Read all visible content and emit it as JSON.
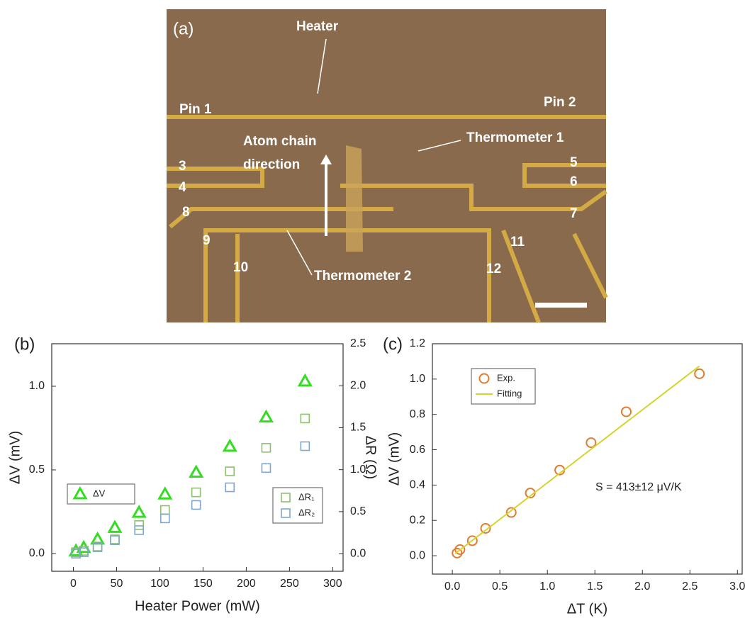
{
  "image_panel": {
    "panel_label": "(a)",
    "labels": {
      "heater": "Heater",
      "pin1": "Pin 1",
      "pin2": "Pin 2",
      "atom1": "Atom chain",
      "atom2": "direction",
      "thermo1": "Thermometer 1",
      "thermo2": "Thermometer 2",
      "n3": "3",
      "n4": "4",
      "n5": "5",
      "n6": "6",
      "n7": "7",
      "n8": "8",
      "n9": "9",
      "n10": "10",
      "n11": "11",
      "n12": "12"
    }
  },
  "chart_data": [
    {
      "type": "scatter",
      "panel_label": "(b)",
      "x_label": "Heater Power (mW)",
      "y_label": "ΔV (mV)",
      "y2_label": "ΔR (Ω)",
      "x": [
        3,
        12,
        28,
        48,
        76,
        106,
        142,
        181,
        223,
        268
      ],
      "series": [
        {
          "name": "ΔV",
          "color": "#33dd22",
          "marker": "triangle",
          "axis": "y",
          "values": [
            0.015,
            0.035,
            0.085,
            0.155,
            0.245,
            0.355,
            0.485,
            0.64,
            0.815,
            1.03
          ]
        },
        {
          "name": "ΔR₁",
          "color": "#8fbf70",
          "marker": "square",
          "axis": "y2",
          "values": [
            0.017,
            0.034,
            0.085,
            0.17,
            0.34,
            0.52,
            0.73,
            0.98,
            1.26,
            1.61
          ]
        },
        {
          "name": "ΔR₂",
          "color": "#7fa6d0",
          "marker": "square",
          "axis": "y2",
          "values": [
            0.0,
            0.017,
            0.076,
            0.16,
            0.28,
            0.42,
            0.58,
            0.79,
            1.02,
            1.28
          ]
        }
      ],
      "xlim": [
        -25,
        312
      ],
      "xticks": [
        0,
        50,
        100,
        150,
        200,
        250,
        300
      ],
      "ylim": [
        -0.106,
        1.254
      ],
      "yticks": [
        {
          "value": 0,
          "label": "0.0"
        },
        0.5,
        {
          "value": 1,
          "label": "1.0"
        }
      ],
      "y2lim": [
        -0.21,
        2.5
      ],
      "y2ticks": [
        {
          "value": 0,
          "label": "0.0"
        },
        0.5,
        {
          "value": 1,
          "label": "1.0"
        },
        1.5,
        {
          "value": 2,
          "label": "2.0"
        },
        2.5
      ],
      "legend": true
    },
    {
      "type": "scatter",
      "panel_label": "(c)",
      "x_label": "ΔT (K)",
      "y_label": "ΔV (mV)",
      "annotation": "S = 413±12 μV/K",
      "series": [
        {
          "name": "Exp.",
          "color": "#e07b30",
          "marker": "circle",
          "axis": "y",
          "x": [
            0.05,
            0.08,
            0.21,
            0.35,
            0.62,
            0.82,
            1.13,
            1.46,
            1.83,
            2.6
          ],
          "values": [
            0.015,
            0.035,
            0.085,
            0.155,
            0.245,
            0.355,
            0.485,
            0.64,
            0.815,
            1.03
          ]
        },
        {
          "name": "Fitting",
          "color": "#d4d430",
          "marker": "line",
          "axis": "y",
          "x": [
            0.03,
            2.6
          ],
          "values": [
            0.012,
            1.074
          ]
        }
      ],
      "xlim": [
        -0.21,
        3.05
      ],
      "xticks": [
        {
          "value": 0,
          "label": "0.0"
        },
        0.5,
        {
          "value": 1,
          "label": "1.0"
        },
        1.5,
        {
          "value": 2,
          "label": "2.0"
        },
        2.5,
        {
          "value": 3,
          "label": "3.0"
        }
      ],
      "ylim": [
        -0.104,
        1.2
      ],
      "yticks": [
        {
          "value": 0,
          "label": "0.0"
        },
        0.2,
        0.4,
        0.6,
        0.8,
        {
          "value": 1,
          "label": "1.0"
        },
        1.2
      ],
      "legend": true
    }
  ]
}
